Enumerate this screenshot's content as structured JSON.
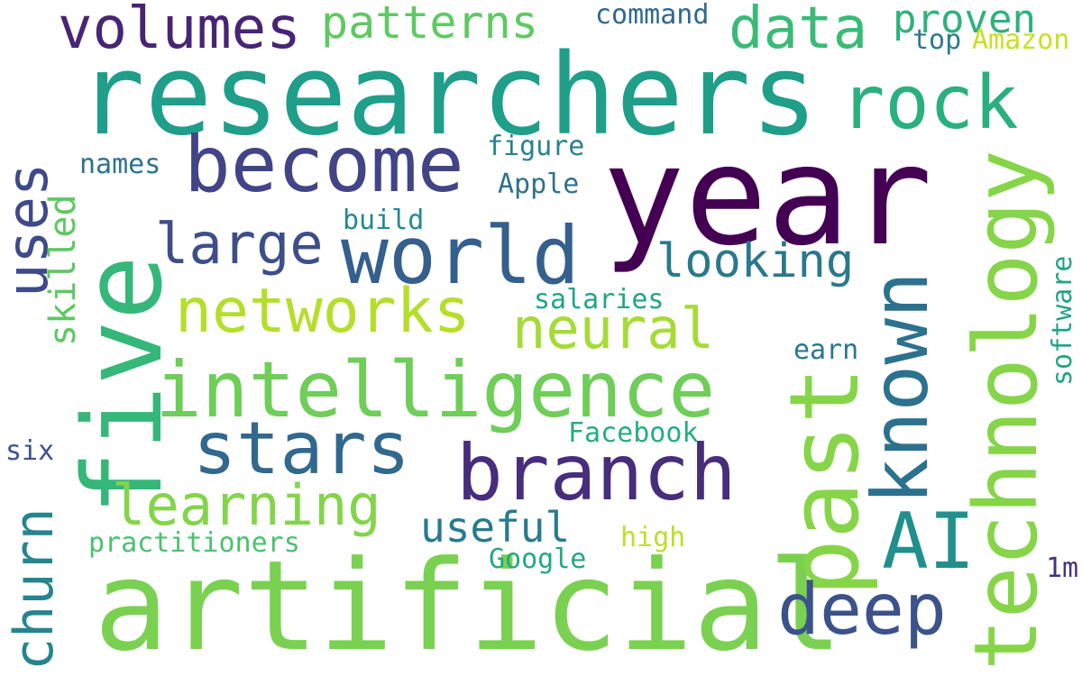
{
  "words": {
    "researchers": "researchers",
    "year": "year",
    "artificial": "artificial",
    "five": "five",
    "intelligence": "intelligence",
    "past": "past",
    "become": "become",
    "world": "world",
    "branch": "branch",
    "technology": "technology",
    "known": "known",
    "rock": "rock",
    "stars": "stars",
    "networks": "networks",
    "AI": "AI",
    "deep": "deep",
    "volumes": "volumes",
    "data": "data",
    "uses": "uses",
    "large": "large",
    "neural": "neural",
    "learning": "learning",
    "churn": "churn",
    "patterns": "patterns",
    "looking": "looking",
    "proven": "proven",
    "useful": "useful",
    "skilled": "skilled",
    "figure": "figure",
    "Apple": "Apple",
    "names": "names",
    "build": "build",
    "command": "command",
    "top": "top",
    "Amazon": "Amazon",
    "salaries": "salaries",
    "earn": "earn",
    "software": "software",
    "Facebook": "Facebook",
    "six": "six",
    "practitioners": "practitioners",
    "high": "high",
    "Google": "Google",
    "1m": "1m"
  },
  "palette": [
    "#440154",
    "#482475",
    "#414487",
    "#355f8d",
    "#2a788e",
    "#21908d",
    "#22a884",
    "#44bf70",
    "#7ad151",
    "#bddf26"
  ]
}
